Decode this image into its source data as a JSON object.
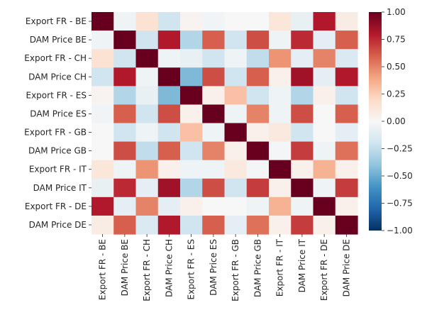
{
  "chart_data": {
    "type": "heatmap",
    "title": "",
    "xlabel": "",
    "ylabel": "",
    "labels": [
      "Export FR - BE",
      "DAM Price BE",
      "Export FR - CH",
      "DAM Price CH",
      "Export FR - ES",
      "DAM Price ES",
      "Export FR - GB",
      "DAM Price GB",
      "Export FR - IT",
      "DAM Price IT",
      "Export FR - DE",
      "DAM Price DE"
    ],
    "matrix": [
      [
        1.0,
        -0.05,
        0.15,
        -0.2,
        0.03,
        -0.03,
        0.0,
        0.0,
        0.12,
        -0.08,
        0.8,
        0.08
      ],
      [
        -0.05,
        1.0,
        -0.2,
        0.8,
        -0.3,
        0.6,
        -0.2,
        0.65,
        -0.05,
        0.75,
        -0.1,
        0.6
      ],
      [
        0.15,
        -0.2,
        1.0,
        -0.05,
        -0.08,
        -0.2,
        -0.05,
        -0.25,
        0.45,
        -0.1,
        0.5,
        -0.15
      ],
      [
        -0.2,
        0.8,
        -0.05,
        1.0,
        -0.45,
        0.65,
        -0.2,
        0.6,
        0.05,
        0.85,
        -0.1,
        0.8
      ],
      [
        0.03,
        -0.3,
        -0.08,
        -0.45,
        1.0,
        0.05,
        0.3,
        -0.2,
        -0.05,
        -0.3,
        0.05,
        -0.2
      ],
      [
        -0.03,
        0.6,
        -0.2,
        0.65,
        0.05,
        1.0,
        -0.05,
        0.5,
        -0.05,
        0.65,
        0.0,
        0.6
      ],
      [
        0.0,
        -0.2,
        -0.05,
        -0.2,
        0.3,
        -0.05,
        1.0,
        0.05,
        0.1,
        -0.2,
        0.0,
        -0.1
      ],
      [
        0.0,
        0.65,
        -0.25,
        0.6,
        -0.2,
        0.5,
        0.05,
        1.0,
        -0.02,
        0.7,
        -0.05,
        0.55
      ],
      [
        0.12,
        -0.05,
        0.45,
        0.05,
        -0.05,
        -0.05,
        0.1,
        -0.02,
        1.0,
        0.05,
        0.35,
        0.05
      ],
      [
        -0.08,
        0.75,
        -0.1,
        0.85,
        -0.3,
        0.65,
        -0.2,
        0.7,
        0.05,
        1.0,
        -0.05,
        0.7
      ],
      [
        0.8,
        -0.1,
        0.5,
        -0.1,
        0.05,
        0.0,
        0.0,
        -0.05,
        0.35,
        -0.05,
        1.0,
        0.05
      ],
      [
        0.08,
        0.6,
        -0.15,
        0.8,
        -0.2,
        0.6,
        -0.1,
        0.55,
        0.05,
        0.7,
        0.05,
        1.0
      ]
    ],
    "colorbar": {
      "vmin": -1.0,
      "vmax": 1.0,
      "ticks": [
        1.0,
        0.75,
        0.5,
        0.25,
        0.0,
        -0.25,
        -0.5,
        -0.75,
        -1.0
      ],
      "tick_labels": [
        "1.00",
        "0.75",
        "0.50",
        "0.25",
        "0.00",
        "−0.25",
        "−0.50",
        "−0.75",
        "−1.00"
      ],
      "colormap": "RdBu_r",
      "colors": [
        "#053061",
        "#2166ac",
        "#4393c3",
        "#92c5de",
        "#d1e5f0",
        "#f7f7f7",
        "#fddbc7",
        "#f4a582",
        "#d6604d",
        "#b2182b",
        "#67001f"
      ]
    }
  }
}
